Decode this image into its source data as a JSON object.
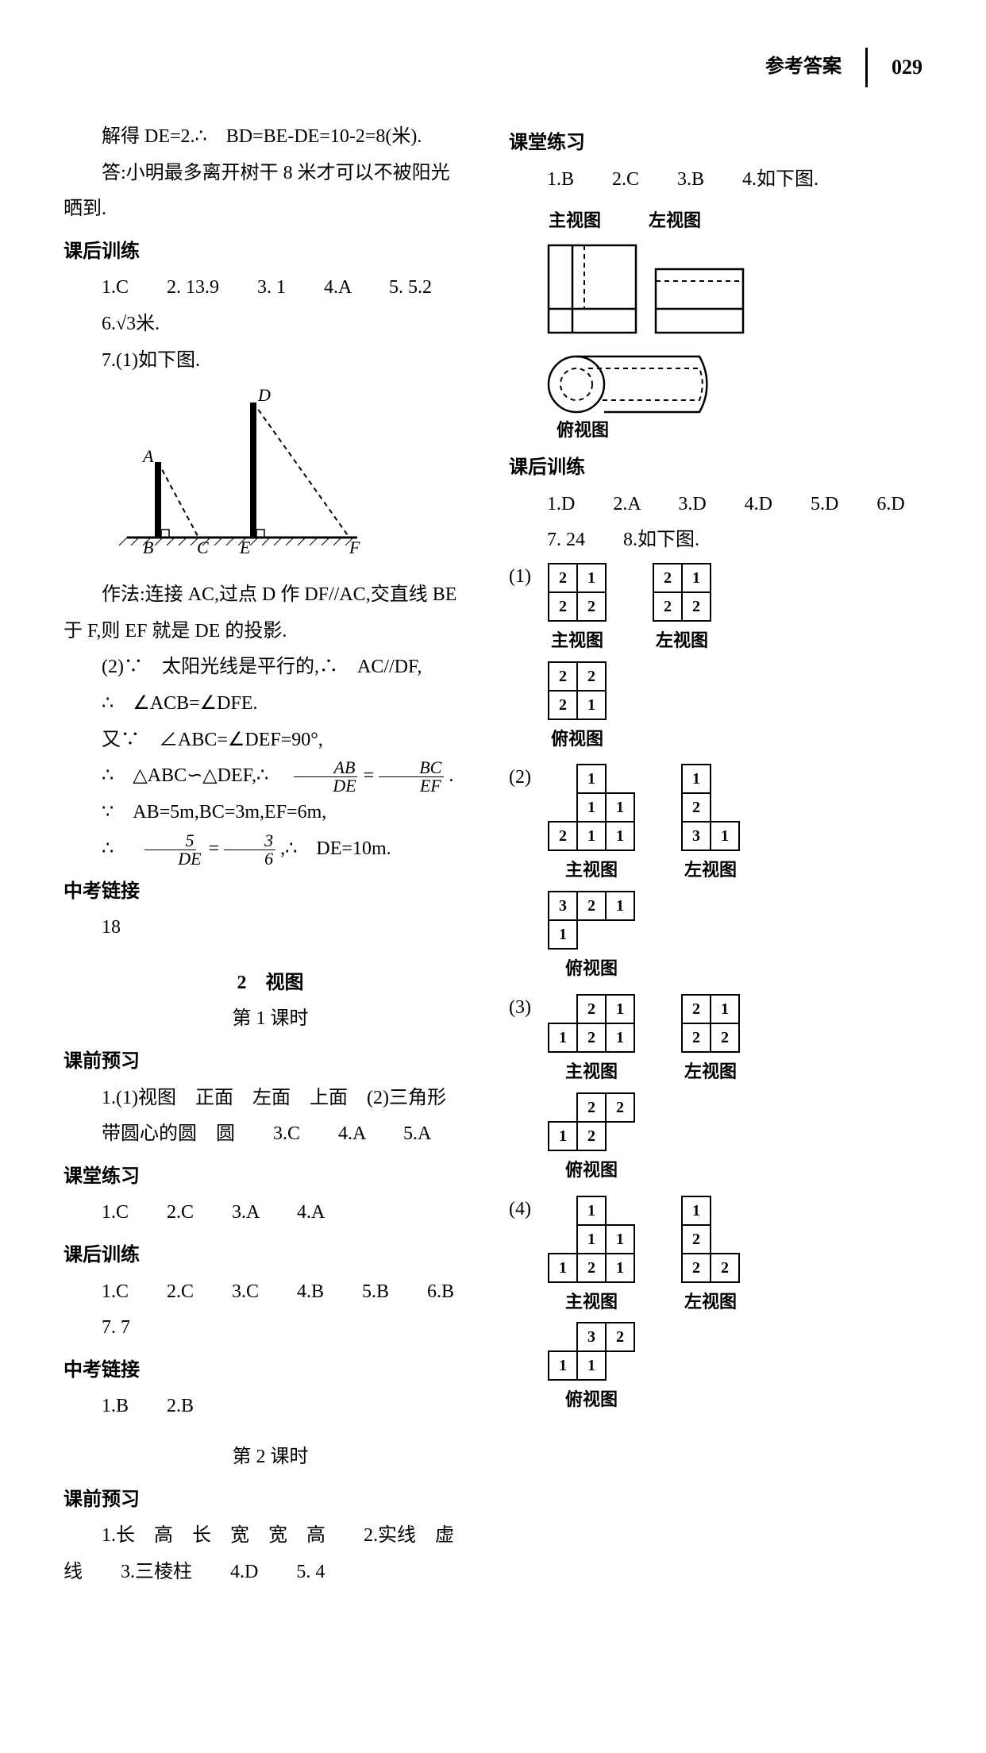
{
  "header": {
    "title": "参考答案",
    "page": "029"
  },
  "left": {
    "solution_line1": "解得 DE=2.∴　BD=BE-DE=10-2=8(米).",
    "solution_line2": "答:小明最多离开树干 8 米才可以不被阳光",
    "solution_line3": "晒到.",
    "khxl_title": "课后训练",
    "khxl_a1": "1.C　　2. 13.9　　3. 1　　4.A　　5. 5.2",
    "khxl_a2_prefix": "6.",
    "khxl_a2_val": "√3",
    "khxl_a2_suffix": "米.",
    "khxl_a3": "7.(1)如下图.",
    "geom": {
      "labels": {
        "A": "A",
        "B": "B",
        "C": "C",
        "D": "D",
        "E": "E",
        "F": "F"
      }
    },
    "method1": "作法:连接 AC,过点 D 作 DF//AC,交直线 BE",
    "method2": "于 F,则 EF 就是 DE 的投影.",
    "proof1": "(2)∵　太阳光线是平行的,∴　AC//DF,",
    "proof2": "∴　∠ACB=∠DFE.",
    "proof3": "又∵　∠ABC=∠DEF=90°,",
    "proof4_a": "∴　△ABC∽△DEF,∴　",
    "proof4_frac1_num": "AB",
    "proof4_frac1_den": "DE",
    "proof4_eq": "=",
    "proof4_frac2_num": "BC",
    "proof4_frac2_den": "EF",
    "proof4_dot": " .",
    "proof5": "∵　AB=5m,BC=3m,EF=6m,",
    "proof6_a": "∴　",
    "proof6_f1n": "5",
    "proof6_f1d": "DE",
    "proof6_eq": "=",
    "proof6_f2n": "3",
    "proof6_f2d": "6",
    "proof6_b": ",∴　DE=10m.",
    "zklj_title": "中考链接",
    "zklj_a": "18",
    "ch2_title": "2　视图",
    "ch2_sub1": "第 1 课时",
    "kqyx_title": "课前预习",
    "kqyx_a1": "1.(1)视图　正面　左面　上面　(2)三角形",
    "kqyx_a2": "带圆心的圆　圆　　3.C　　4.A　　5.A",
    "ktlx_title": "课堂练习",
    "ktlx_a": "1.C　　2.C　　3.A　　4.A",
    "khxl2_title": "课后训练",
    "khxl2_a1": "1.C　　2.C　　3.C　　4.B　　5.B　　6.B",
    "khxl2_a2": "7. 7",
    "zklj2_title": "中考链接",
    "zklj2_a": "1.B　　2.B",
    "ch2_sub2": "第 2 课时",
    "kqyx2_title": "课前预习",
    "kqyx2_a1": "1.长　高　长　宽　宽　高　　2.实线　虚",
    "kqyx2_a2": "线　　3.三棱柱　　4.D　　5. 4"
  },
  "right": {
    "ktlx_title": "课堂练习",
    "ktlx_a": "1.B　　2.C　　3.B　　4.如下图.",
    "view_labels": {
      "front": "主视图",
      "left": "左视图",
      "top": "俯视图"
    },
    "khxl_title": "课后训练",
    "khxl_a1": "1.D　　2.A　　3.D　　4.D　　5.D　　6.D",
    "khxl_a2": "7. 24　　8.如下图.",
    "grids": [
      {
        "num": "(1)",
        "front": [
          [
            "2",
            "1"
          ],
          [
            "2",
            "2"
          ]
        ],
        "left": [
          [
            "2",
            "1"
          ],
          [
            "2",
            "2"
          ]
        ],
        "top": [
          [
            "2",
            "2"
          ],
          [
            "2",
            "1"
          ]
        ]
      },
      {
        "num": "(2)",
        "front": [
          [
            "",
            "1",
            ""
          ],
          [
            "",
            "1",
            "1"
          ],
          [
            "2",
            "1",
            "1"
          ]
        ],
        "left": [
          [
            "1",
            ""
          ],
          [
            "2",
            ""
          ],
          [
            "3",
            "1"
          ]
        ],
        "top": [
          [
            "3",
            "2",
            "1"
          ],
          [
            "1",
            "",
            ""
          ]
        ]
      },
      {
        "num": "(3)",
        "front": [
          [
            "",
            "2",
            "1"
          ],
          [
            "1",
            "2",
            "1"
          ]
        ],
        "left": [
          [
            "2",
            "1"
          ],
          [
            "2",
            "2"
          ]
        ],
        "top": [
          [
            "",
            "2",
            "2"
          ],
          [
            "1",
            "2",
            ""
          ]
        ]
      },
      {
        "num": "(4)",
        "front": [
          [
            "",
            "1",
            ""
          ],
          [
            "",
            "1",
            "1"
          ],
          [
            "1",
            "2",
            "1"
          ]
        ],
        "left": [
          [
            "1",
            ""
          ],
          [
            "2",
            ""
          ],
          [
            "2",
            "2"
          ]
        ],
        "top": [
          [
            "",
            "3",
            "2"
          ],
          [
            "1",
            "1",
            ""
          ]
        ]
      }
    ]
  }
}
